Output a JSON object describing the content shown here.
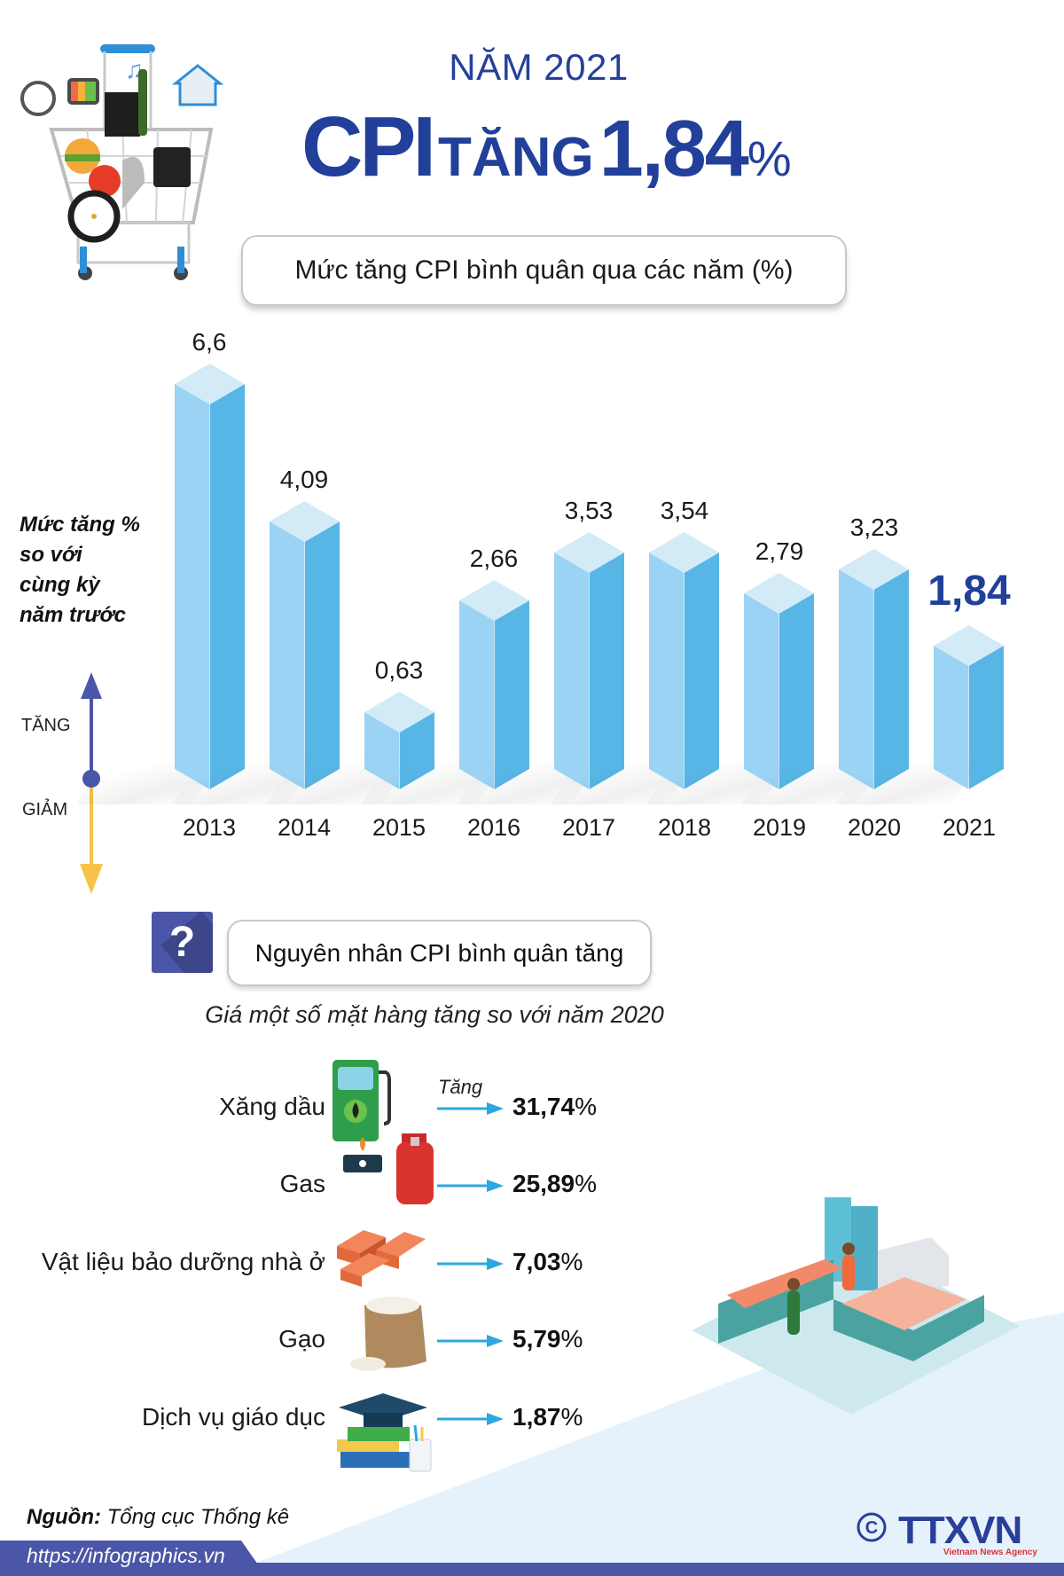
{
  "header": {
    "year_title": "NĂM 2021",
    "main_title": {
      "cpi": "CPI",
      "tang": "TĂNG",
      "value": "1,84",
      "pct": "%"
    },
    "chart_box_title": "Mức tăng CPI bình quân qua các năm (%)"
  },
  "axis_legend": {
    "ylabel_lines": [
      "Mức tăng %",
      "so với",
      "cùng kỳ",
      "năm trước"
    ],
    "up_label": "TĂNG",
    "down_label": "GIẢM"
  },
  "chart_data": {
    "type": "bar",
    "title": "Mức tăng CPI bình quân qua các năm (%)",
    "xlabel": "",
    "ylabel": "Mức tăng % so với cùng kỳ năm trước",
    "categories": [
      "2013",
      "2014",
      "2015",
      "2016",
      "2017",
      "2018",
      "2019",
      "2020",
      "2021"
    ],
    "values": [
      6.6,
      4.09,
      0.63,
      2.66,
      3.53,
      3.54,
      2.79,
      3.23,
      1.84
    ],
    "value_labels": [
      "6,6",
      "4,09",
      "0,63",
      "2,66",
      "3,53",
      "3,54",
      "2,79",
      "3,23",
      "1,84"
    ],
    "highlight_index": 8,
    "grid": false,
    "legend": "none",
    "style": "3d-isometric-bars"
  },
  "reasons": {
    "icon": "question-icon",
    "title": "Nguyên nhân CPI bình quân tăng",
    "subtitle": "Giá một số mặt hàng tăng so với năm 2020",
    "arrow_note": "Tăng",
    "items": [
      {
        "label": "Xăng dầu",
        "value": "31,74",
        "pct": "%",
        "icon": "fuel-pump-icon"
      },
      {
        "label": "Gas",
        "value": "25,89",
        "pct": "%",
        "icon": "gas-cylinder-icon"
      },
      {
        "label": "Vật liệu bảo dưỡng nhà ở",
        "value": "7,03",
        "pct": "%",
        "icon": "bricks-icon"
      },
      {
        "label": "Gạo",
        "value": "5,79",
        "pct": "%",
        "icon": "rice-sack-icon"
      },
      {
        "label": "Dịch vụ giáo dục",
        "value": "1,87",
        "pct": "%",
        "icon": "education-icon"
      }
    ]
  },
  "footer": {
    "source_label": "Nguồn:",
    "source_value": "Tổng cục Thống kê",
    "url": "https://infographics.vn",
    "copyright": "©",
    "logo_text": "TTXVN",
    "logo_sub": "Vietnam News Agency"
  },
  "colors": {
    "title_blue": "#22409a",
    "bar_light": "#9ad3f3",
    "bar_dark": "#58b6e6",
    "bar_top": "#d3eaf7",
    "accent_purple": "#4b56a8",
    "down_arrow": "#f7c247",
    "arrow_cyan": "#2aa8e0"
  }
}
